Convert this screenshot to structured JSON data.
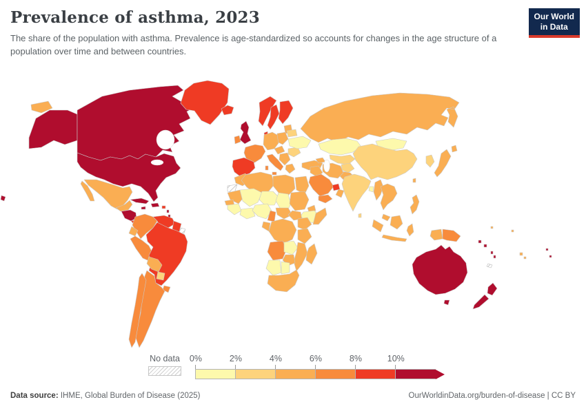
{
  "header": {
    "title": "Prevalence of asthma, 2023",
    "subtitle": "The share of the population with asthma. Prevalence is age-standardized so accounts for changes in the age structure of a population over time and between countries."
  },
  "logo": {
    "line1": "Our World",
    "line2": "in Data",
    "bg": "#12294E",
    "accent": "#D93A2B"
  },
  "legend": {
    "no_data_label": "No data",
    "tick_labels": [
      "0%",
      "2%",
      "4%",
      "6%",
      "8%",
      "10%"
    ],
    "bin_colors": [
      "#FDF9AC",
      "#FDD37C",
      "#FAAE53",
      "#F88B3C",
      "#EF3B24",
      "#B00D2E"
    ],
    "bin_width": 58
  },
  "footer": {
    "source_label": "Data source:",
    "source_text": " IHME, Global Burden of Disease (2025)",
    "right_text": "OurWorldinData.org/burden-of-disease | CC BY"
  },
  "map": {
    "ocean": "#ffffff",
    "stroke": "#c9c9c9",
    "bin_colors": {
      "b1": "#FDF9AC",
      "b2": "#FDD37C",
      "b3": "#FAAE53",
      "b4": "#F88B3C",
      "b5": "#EF3B24",
      "b6": "#B00D2E"
    },
    "regions": {
      "canada": "b6",
      "alaska": "b6",
      "chukotka_w": "b3",
      "greenland": "b5",
      "usa": "b6",
      "hawaii": "b6",
      "mexico": "b3",
      "guatemala": "b3",
      "honduras_nicaragua": "b6",
      "costa_panama": "b5",
      "cuba": "b6",
      "hispaniola": "b6",
      "jamaica": "b6",
      "puerto_rico": "b5",
      "antilles": "b6",
      "colombia": "b4",
      "venezuela": "b5",
      "guyana_suriname": "b5",
      "french_guiana": "nodata",
      "ecuador": "b3",
      "peru": "b4",
      "brazil": "b5",
      "bolivia": "b3",
      "paraguay": "b2",
      "uruguay": "b4",
      "argentina": "b4",
      "chile": "b4",
      "iceland": "b5",
      "uk": "b6",
      "ireland": "b4",
      "norway": "b5",
      "sweden": "b5",
      "finland": "b5",
      "denmark": "b5",
      "baltics": "b3",
      "belarus": "b2",
      "poland": "b3",
      "germany": "b3",
      "france": "b4",
      "iberia": "b5",
      "italy": "b4",
      "austria": "b3",
      "balkans": "b3",
      "greece": "b3",
      "romania_bulgaria": "b2",
      "ukraine": "b1",
      "turkey": "b3",
      "russia": "b3",
      "kazakhstan": "b1",
      "central_asia": "b2",
      "caucasus": "b3",
      "mongolia": "b1",
      "china": "b2",
      "korea": "b2",
      "japan": "b3",
      "taiwan": "b3",
      "afghanistan": "b2",
      "pakistan": "b3",
      "iran": "b3",
      "iraq_syria": "b3",
      "saudi": "b4",
      "uae": "b5",
      "oman": "b3",
      "yemen": "b4",
      "india": "b2",
      "bangladesh": "b1",
      "sri_lanka": "b2",
      "myanmar": "b3",
      "indochina": "b3",
      "malaysia": "b3",
      "sumatra": "b3",
      "borneo": "b3",
      "java": "b3",
      "sulawesi": "b3",
      "philippines": "b3",
      "west_papua": "b3",
      "png": "b4",
      "solomon": "b6",
      "vanuatu": "b6",
      "fiji": "b3",
      "tonga_samoa": "b6",
      "micronesia": "b3",
      "new_caledonia": "nodata",
      "australia": "b6",
      "tasmania": "b6",
      "nz_north": "b6",
      "nz_south": "b6",
      "morocco": "b3",
      "western_sahara": "nodata",
      "algeria": "b3",
      "libya": "b3",
      "egypt": "b3",
      "mauritania": "b3",
      "mali": "b1",
      "niger": "b1",
      "chad": "b1",
      "sudan": "b3",
      "eritrea": "b3",
      "ethiopia": "b1",
      "somalia": "b3",
      "senegal": "b3",
      "guinea": "b1",
      "ivory_ghana": "b1",
      "nigeria": "b1",
      "cameroon": "b4",
      "car": "b3",
      "south_sudan": "b3",
      "gabon": "b3",
      "drc": "b3",
      "uganda_kenya": "b3",
      "tanzania": "b3",
      "angola": "b4",
      "zambia": "b1",
      "mozambique": "b3",
      "zimbabwe": "b3",
      "namibia": "b1",
      "botswana": "b1",
      "south_africa": "b3",
      "madagascar": "b3"
    }
  },
  "chart_data": {
    "type": "choropleth",
    "title": "Prevalence of asthma, 2023",
    "unit": "% of population with asthma (age-standardized)",
    "legend_bins": [
      {
        "range": "0-2%",
        "color": "#FDF9AC"
      },
      {
        "range": "2-4%",
        "color": "#FDD37C"
      },
      {
        "range": "4-6%",
        "color": "#FAAE53"
      },
      {
        "range": "6-8%",
        "color": "#F88B3C"
      },
      {
        "range": "8-10%",
        "color": "#EF3B24"
      },
      {
        "range": "10%+",
        "color": "#B00D2E"
      }
    ],
    "no_data_regions": [
      "Western Sahara",
      "French Guiana",
      "New Caledonia"
    ],
    "region_values": {
      "United States": "10%+",
      "Canada": "10%+",
      "Australia": "10%+",
      "New Zealand": "10%+",
      "United Kingdom": "10%+",
      "Cuba": "10%+",
      "Honduras": "10%+",
      "Nicaragua": "10%+",
      "Haiti/Dominican Republic": "10%+",
      "Solomon Islands": "10%+",
      "Greenland": "8-10%",
      "Iceland": "8-10%",
      "Norway": "8-10%",
      "Sweden": "8-10%",
      "Finland": "8-10%",
      "Denmark": "8-10%",
      "Spain": "8-10%",
      "Portugal": "8-10%",
      "Brazil": "8-10%",
      "Venezuela": "8-10%",
      "Guyana/Suriname": "8-10%",
      "Costa Rica/Panama": "8-10%",
      "United Arab Emirates": "8-10%",
      "France": "6-8%",
      "Ireland": "6-8%",
      "Italy": "6-8%",
      "Colombia": "6-8%",
      "Peru": "6-8%",
      "Argentina": "6-8%",
      "Chile": "6-8%",
      "Uruguay": "6-8%",
      "Saudi Arabia": "6-8%",
      "Yemen": "6-8%",
      "Angola": "6-8%",
      "Cameroon": "6-8%",
      "Papua New Guinea": "6-8%",
      "Russia": "4-6%",
      "Mexico": "4-6%",
      "Germany": "4-6%",
      "Poland": "4-6%",
      "Turkey": "4-6%",
      "Greece": "4-6%",
      "Japan": "4-6%",
      "Iran": "4-6%",
      "Pakistan": "4-6%",
      "Morocco": "4-6%",
      "Algeria": "4-6%",
      "Libya": "4-6%",
      "Egypt": "4-6%",
      "Sudan": "4-6%",
      "Somalia": "4-6%",
      "DR Congo": "4-6%",
      "Kenya": "4-6%",
      "Tanzania": "4-6%",
      "Mozambique": "4-6%",
      "Zimbabwe": "4-6%",
      "South Africa": "4-6%",
      "Madagascar": "4-6%",
      "Myanmar": "4-6%",
      "Thailand/Vietnam": "4-6%",
      "Indonesia": "4-6%",
      "Philippines": "4-6%",
      "Bolivia": "4-6%",
      "Ecuador": "4-6%",
      "Oman": "4-6%",
      "China": "2-4%",
      "India": "2-4%",
      "South Korea": "2-4%",
      "Afghanistan": "2-4%",
      "Central Asia": "2-4%",
      "Paraguay": "2-4%",
      "Belarus": "2-4%",
      "Romania/Bulgaria": "2-4%",
      "Sri Lanka": "2-4%",
      "Kazakhstan": "0-2%",
      "Mongolia": "0-2%",
      "Ukraine": "0-2%",
      "Ethiopia": "0-2%",
      "Mali": "0-2%",
      "Niger": "0-2%",
      "Chad": "0-2%",
      "Nigeria": "0-2%",
      "Ghana/Ivory Coast": "0-2%",
      "Guinea": "0-2%",
      "Zambia": "0-2%",
      "Namibia": "0-2%",
      "Botswana": "0-2%",
      "Bangladesh": "0-2%"
    }
  }
}
